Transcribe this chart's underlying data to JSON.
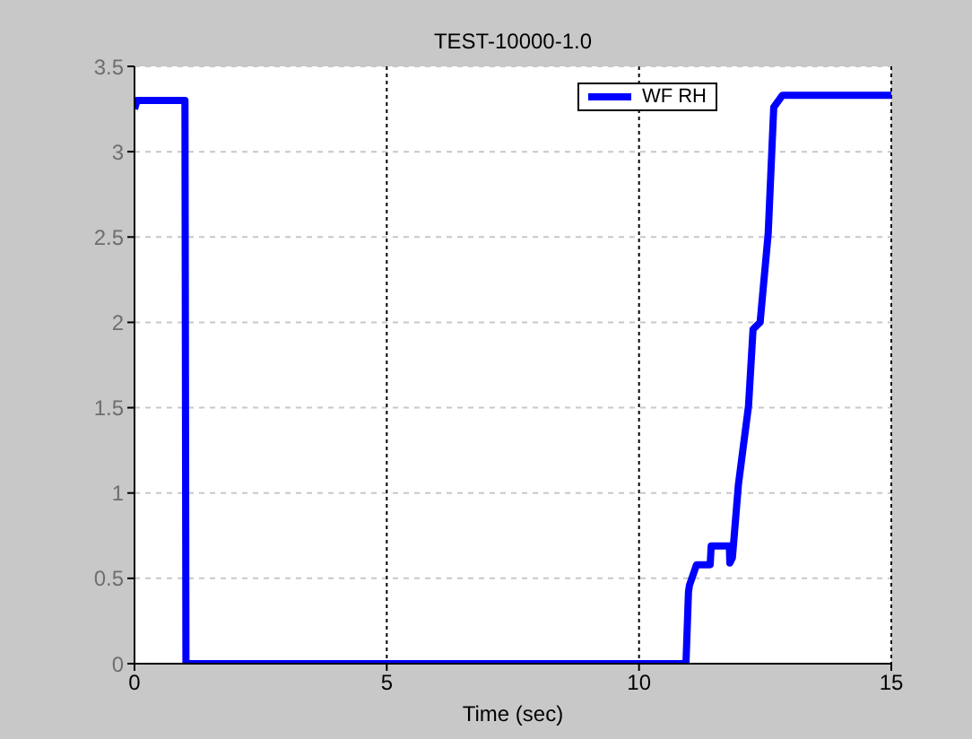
{
  "chart_data": {
    "type": "line",
    "title": "TEST-10000-1.0",
    "xlabel": "Time (sec)",
    "xlim": [
      0,
      15
    ],
    "xticks": [
      0,
      5,
      10,
      15
    ],
    "ylim": [
      0,
      3.5
    ],
    "yticks": [
      0,
      0.5,
      1,
      1.5,
      2,
      2.5,
      3,
      3.5
    ],
    "grid": true,
    "legend": "top right",
    "line_style": "solid",
    "marker": "none",
    "series": [
      {
        "name": "WF RH",
        "color": "#0000ff",
        "x": [
          0,
          0.05,
          1.0,
          1.02,
          10.93,
          10.98,
          11.0,
          11.14,
          11.41,
          11.43,
          11.79,
          11.8,
          11.85,
          11.87,
          11.97,
          12.17,
          12.26,
          12.4,
          12.56,
          12.67,
          12.84,
          15
        ],
        "values": [
          3.25,
          3.3,
          3.3,
          0,
          0,
          0.42,
          0.46,
          0.58,
          0.58,
          0.69,
          0.69,
          0.59,
          0.62,
          0.69,
          1.05,
          1.51,
          1.96,
          2.0,
          2.52,
          3.26,
          3.33,
          3.33
        ]
      }
    ]
  }
}
